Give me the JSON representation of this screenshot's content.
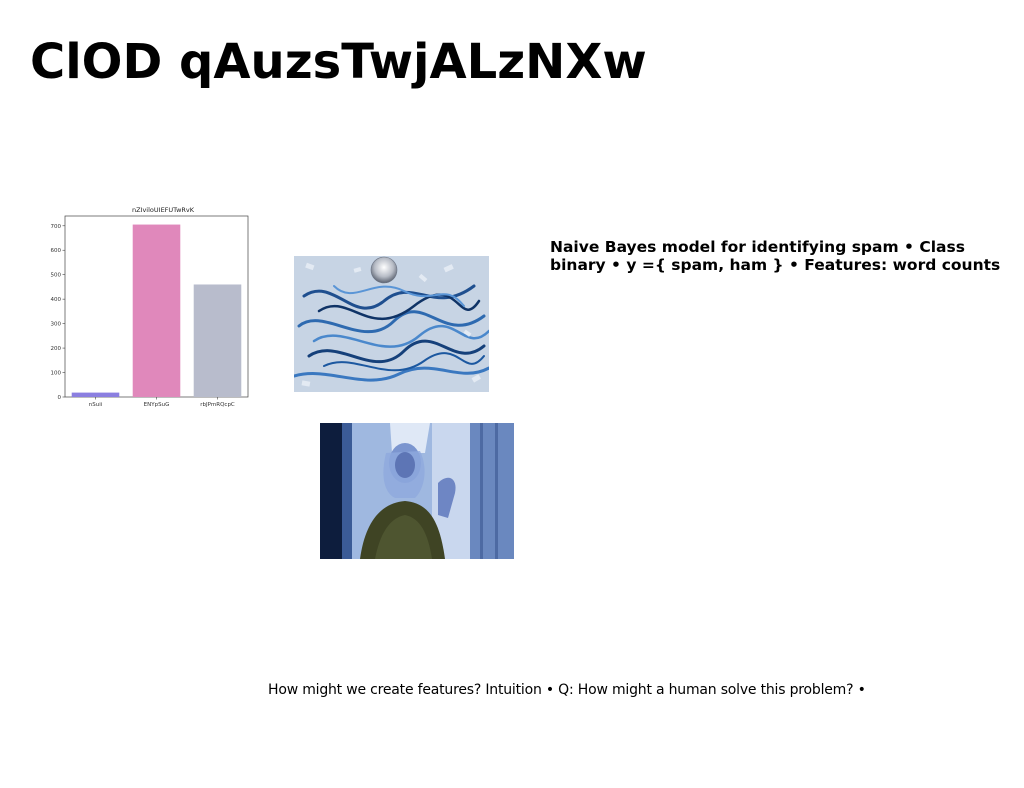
{
  "slide": {
    "title": "ClOD qAuzsTwjALzNXw",
    "bold_text": "Naive Bayes model for identifying spam • Class binary • y ={ spam, ham } • Features: word counts",
    "caption": "How might we create features? Intuition • Q: How might a human solve this problem? •"
  },
  "chart_data": {
    "type": "bar",
    "title": "nZIviloUIEFUTwRvK",
    "categories": [
      "nSuii",
      "ENYpSuG",
      "rbJPmRQcpC"
    ],
    "values": [
      18,
      705,
      460
    ],
    "colors": [
      "#8b7fe0",
      "#e088bb",
      "#b8bccc"
    ],
    "ylim": [
      0,
      740
    ],
    "yticks": [
      "0",
      "100",
      "200",
      "300",
      "400",
      "500",
      "600",
      "700"
    ],
    "xlabel": "",
    "ylabel": "",
    "grid": false
  },
  "images": {
    "confetti_photo": "blue-confetti-streamers-disco-ball-photo",
    "person_photo": "person-by-window-blue-tinted-photo"
  }
}
